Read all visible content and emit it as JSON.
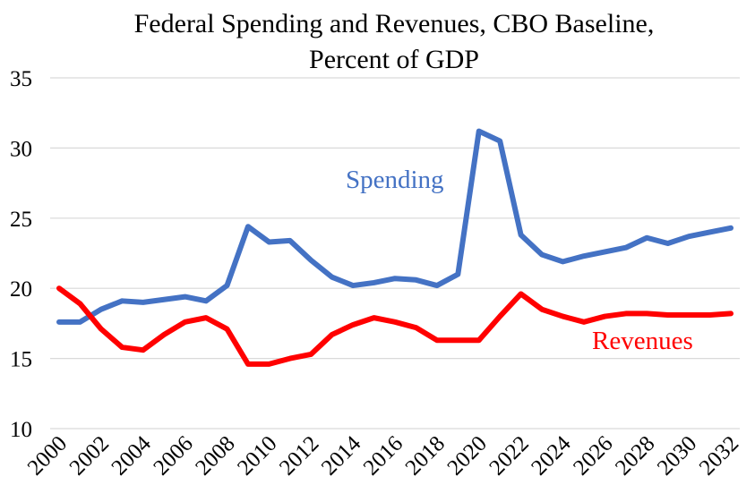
{
  "chart_data": {
    "type": "line",
    "title_lines": [
      "Federal Spending and Revenues, CBO Baseline,",
      "Percent of GDP"
    ],
    "xlabel": "",
    "ylabel": "",
    "x": [
      2000,
      2001,
      2002,
      2003,
      2004,
      2005,
      2006,
      2007,
      2008,
      2009,
      2010,
      2011,
      2012,
      2013,
      2014,
      2015,
      2016,
      2017,
      2018,
      2019,
      2020,
      2021,
      2022,
      2023,
      2024,
      2025,
      2026,
      2027,
      2028,
      2029,
      2030,
      2031,
      2032
    ],
    "x_tick_labels": [
      "2000",
      "2002",
      "2004",
      "2006",
      "2008",
      "2010",
      "2012",
      "2014",
      "2016",
      "2018",
      "2020",
      "2022",
      "2024",
      "2026",
      "2028",
      "2030",
      "2032"
    ],
    "ylim": [
      10,
      35
    ],
    "y_ticks": [
      10,
      15,
      20,
      25,
      30,
      35
    ],
    "grid": true,
    "series": [
      {
        "name": "Spending",
        "color": "#4472c4",
        "values": [
          17.6,
          17.6,
          18.5,
          19.1,
          19.0,
          19.2,
          19.4,
          19.1,
          20.2,
          24.4,
          23.3,
          23.4,
          22.0,
          20.8,
          20.2,
          20.4,
          20.7,
          20.6,
          20.2,
          21.0,
          31.2,
          30.5,
          23.8,
          22.4,
          21.9,
          22.3,
          22.6,
          22.9,
          23.6,
          23.2,
          23.7,
          24.0,
          24.3
        ]
      },
      {
        "name": "Revenues",
        "color": "#ff0000",
        "values": [
          20.0,
          18.9,
          17.1,
          15.8,
          15.6,
          16.7,
          17.6,
          17.9,
          17.1,
          14.6,
          14.6,
          15.0,
          15.3,
          16.7,
          17.4,
          17.9,
          17.6,
          17.2,
          16.3,
          16.3,
          16.3,
          18.0,
          19.6,
          18.5,
          18.0,
          17.6,
          18.0,
          18.2,
          18.2,
          18.1,
          18.1,
          18.1,
          18.2
        ]
      }
    ]
  }
}
